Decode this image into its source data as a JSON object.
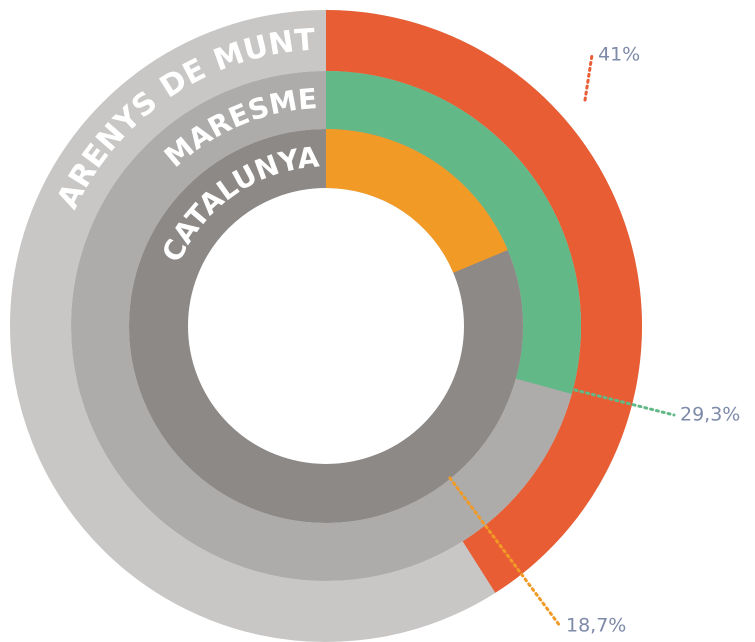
{
  "chart_data": {
    "type": "radial_bar",
    "categories": [
      "ARENYS DE MUNT",
      "MARESME",
      "CATALUNYA"
    ],
    "values": [
      41,
      29.3,
      18.7
    ],
    "value_labels": [
      "41%",
      "29,3%",
      "18,7%"
    ],
    "colors": [
      "#e85d33",
      "#62b987",
      "#f29a26"
    ],
    "ylim": [
      0,
      100
    ]
  }
}
